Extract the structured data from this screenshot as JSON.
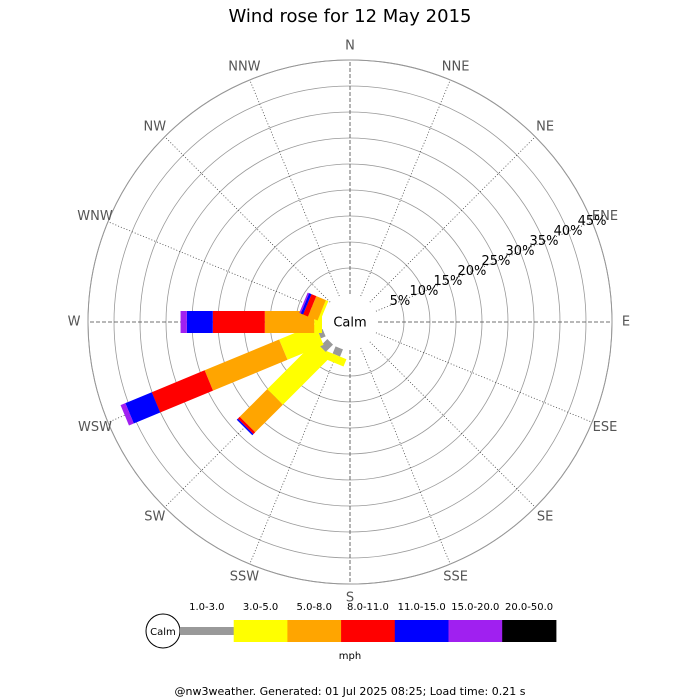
{
  "chart_data": {
    "type": "wind-rose",
    "title": "Wind rose for 12 May 2015",
    "categories": [
      "N",
      "NNE",
      "NE",
      "ENE",
      "E",
      "ESE",
      "SE",
      "SSE",
      "S",
      "SSW",
      "SW",
      "WSW",
      "W",
      "WNW",
      "NW",
      "NNW"
    ],
    "series": [
      {
        "name": "1.0-3.0",
        "color": "#999999",
        "values": [
          0,
          0,
          0,
          0,
          0,
          0,
          0,
          0,
          0,
          1.5,
          2,
          1,
          0,
          0,
          0,
          0
        ]
      },
      {
        "name": "3.0-5.0",
        "color": "#ffff00",
        "values": [
          0,
          0,
          0,
          0,
          0,
          0,
          0,
          0,
          0,
          1.5,
          13,
          7.5,
          1.5,
          0.5,
          0,
          0
        ]
      },
      {
        "name": "5.0-8.0",
        "color": "#ffa500",
        "values": [
          0,
          0,
          0,
          0,
          0,
          0,
          0,
          0,
          0,
          0,
          7.5,
          15.5,
          9.5,
          2,
          0,
          0
        ]
      },
      {
        "name": "8.0-11.0",
        "color": "#ff0000",
        "values": [
          0,
          0,
          0,
          0,
          0,
          0,
          0,
          0,
          0,
          0,
          0.5,
          11,
          10,
          1,
          0,
          0
        ]
      },
      {
        "name": "11.0-15.0",
        "color": "#0000ff",
        "values": [
          0,
          0,
          0,
          0,
          0,
          0,
          0,
          0,
          0,
          0,
          0.3,
          5.5,
          5,
          0.5,
          0,
          0
        ]
      },
      {
        "name": "15.0-20.0",
        "color": "#a020f0",
        "values": [
          0,
          0,
          0,
          0,
          0,
          0,
          0,
          0,
          0,
          0,
          0,
          1,
          1.2,
          0.3,
          0,
          0
        ]
      },
      {
        "name": "20.0-50.0",
        "color": "#000000",
        "values": [
          0,
          0,
          0,
          0,
          0,
          0,
          0,
          0,
          0,
          0,
          0,
          0,
          0,
          0,
          0,
          0
        ]
      }
    ],
    "rlim": [
      0,
      45
    ],
    "rticks": [
      {
        "value": 5,
        "label": "5%"
      },
      {
        "value": 10,
        "label": "10%"
      },
      {
        "value": 15,
        "label": "15%"
      },
      {
        "value": 20,
        "label": "20%"
      },
      {
        "value": 25,
        "label": "25%"
      },
      {
        "value": 30,
        "label": "30%"
      },
      {
        "value": 35,
        "label": "35%"
      },
      {
        "value": 40,
        "label": "40%"
      },
      {
        "value": 45,
        "label": "45%"
      }
    ],
    "center_label": "Calm",
    "legend_unit": "mph",
    "grid": true
  },
  "footer": "@nw3weather. Generated: 01 Jul 2025 08:25; Load time: 0.21 s"
}
